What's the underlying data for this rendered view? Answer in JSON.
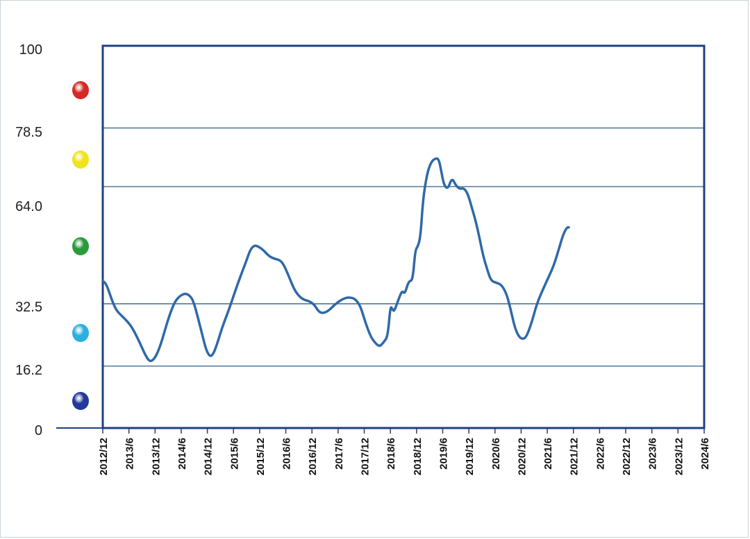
{
  "chart_data": {
    "type": "line",
    "title": "",
    "xlabel": "",
    "ylabel": "",
    "ylim": [
      0,
      100
    ],
    "y_ticks": [
      "100",
      "78.5",
      "64.0",
      "32.5",
      "16.2",
      "0"
    ],
    "x_ticks": [
      "2012/12",
      "2013/6",
      "2013/12",
      "2014/6",
      "2014/12",
      "2015/6",
      "2015/12",
      "2016/6",
      "2016/12",
      "2017/6",
      "2017/12",
      "2018/6",
      "2018/12",
      "2019/6",
      "2019/12",
      "2020/6",
      "2020/12",
      "2021/6",
      "2021/12",
      "2022/6",
      "2022/12",
      "2023/6",
      "2023/12",
      "2024/6"
    ],
    "zones": [
      {
        "from": 78.5,
        "to": 100,
        "color": "#d42a25"
      },
      {
        "from": 64.0,
        "to": 78.5,
        "color": "#efe31c"
      },
      {
        "from": 32.5,
        "to": 64.0,
        "color": "#2a9a3c"
      },
      {
        "from": 16.2,
        "to": 32.5,
        "color": "#2ab0e0"
      },
      {
        "from": 0,
        "to": 16.2,
        "color": "#22389a"
      }
    ],
    "grid_lines": [
      78.5,
      64.0,
      32.5,
      16.2
    ],
    "series": [
      {
        "color": "#2e69a8",
        "points": [
          [
            0,
            38.5
          ],
          [
            0.12,
            37.8
          ],
          [
            0.25,
            35.5
          ],
          [
            0.4,
            32.5
          ],
          [
            0.55,
            30.5
          ],
          [
            0.75,
            29.2
          ],
          [
            0.95,
            27.8
          ],
          [
            1.1,
            26.5
          ],
          [
            1.3,
            24.0
          ],
          [
            1.5,
            21.0
          ],
          [
            1.65,
            18.8
          ],
          [
            1.78,
            17.5
          ],
          [
            1.9,
            17.6
          ],
          [
            2.05,
            19.0
          ],
          [
            2.2,
            21.5
          ],
          [
            2.35,
            25.0
          ],
          [
            2.55,
            29.5
          ],
          [
            2.75,
            33.0
          ],
          [
            2.95,
            34.6
          ],
          [
            3.15,
            35.2
          ],
          [
            3.3,
            34.8
          ],
          [
            3.45,
            33.5
          ],
          [
            3.6,
            30.0
          ],
          [
            3.8,
            24.5
          ],
          [
            3.95,
            20.5
          ],
          [
            4.08,
            18.8
          ],
          [
            4.2,
            19.0
          ],
          [
            4.35,
            21.5
          ],
          [
            4.55,
            26.0
          ],
          [
            4.8,
            30.5
          ],
          [
            5.0,
            34.5
          ],
          [
            5.2,
            38.5
          ],
          [
            5.45,
            43.0
          ],
          [
            5.65,
            46.8
          ],
          [
            5.8,
            47.8
          ],
          [
            5.95,
            47.5
          ],
          [
            6.15,
            46.5
          ],
          [
            6.35,
            45.0
          ],
          [
            6.55,
            44.3
          ],
          [
            6.75,
            44.0
          ],
          [
            6.9,
            43.0
          ],
          [
            7.1,
            40.0
          ],
          [
            7.3,
            36.5
          ],
          [
            7.5,
            34.5
          ],
          [
            7.7,
            33.5
          ],
          [
            7.9,
            33.2
          ],
          [
            8.1,
            32.2
          ],
          [
            8.25,
            30.5
          ],
          [
            8.4,
            30.0
          ],
          [
            8.6,
            30.5
          ],
          [
            8.8,
            31.8
          ],
          [
            9.0,
            33.0
          ],
          [
            9.25,
            34.0
          ],
          [
            9.45,
            34.2
          ],
          [
            9.65,
            33.8
          ],
          [
            9.85,
            32.0
          ],
          [
            10.05,
            27.5
          ],
          [
            10.25,
            23.8
          ],
          [
            10.45,
            22.0
          ],
          [
            10.6,
            21.3
          ],
          [
            10.75,
            22.5
          ],
          [
            10.9,
            24.0
          ],
          [
            11.0,
            32.0
          ],
          [
            11.08,
            31.0
          ],
          [
            11.15,
            30.5
          ],
          [
            11.3,
            33.5
          ],
          [
            11.45,
            36.0
          ],
          [
            11.55,
            35.0
          ],
          [
            11.7,
            38.5
          ],
          [
            11.85,
            38.5
          ],
          [
            11.95,
            46.5
          ],
          [
            12.05,
            47.5
          ],
          [
            12.15,
            50.0
          ],
          [
            12.25,
            60.0
          ],
          [
            12.4,
            66.5
          ],
          [
            12.55,
            69.5
          ],
          [
            12.7,
            70.5
          ],
          [
            12.85,
            70.5
          ],
          [
            12.95,
            67.0
          ],
          [
            13.05,
            63.5
          ],
          [
            13.2,
            62.5
          ],
          [
            13.35,
            65.5
          ],
          [
            13.5,
            63.5
          ],
          [
            13.65,
            62.5
          ],
          [
            13.8,
            62.8
          ],
          [
            13.95,
            61.5
          ],
          [
            14.1,
            58.0
          ],
          [
            14.25,
            54.5
          ],
          [
            14.4,
            50.0
          ],
          [
            14.55,
            45.0
          ],
          [
            14.7,
            41.5
          ],
          [
            14.85,
            38.5
          ],
          [
            15.05,
            38.0
          ],
          [
            15.25,
            37.5
          ],
          [
            15.45,
            35.0
          ],
          [
            15.6,
            31.0
          ],
          [
            15.75,
            26.5
          ],
          [
            15.9,
            24.0
          ],
          [
            16.05,
            23.2
          ],
          [
            16.2,
            23.8
          ],
          [
            16.4,
            27.5
          ],
          [
            16.6,
            32.5
          ],
          [
            16.85,
            36.5
          ],
          [
            17.05,
            39.5
          ],
          [
            17.25,
            42.5
          ],
          [
            17.45,
            47.0
          ],
          [
            17.6,
            50.5
          ],
          [
            17.75,
            52.5
          ],
          [
            17.82,
            52.5
          ]
        ]
      }
    ]
  }
}
